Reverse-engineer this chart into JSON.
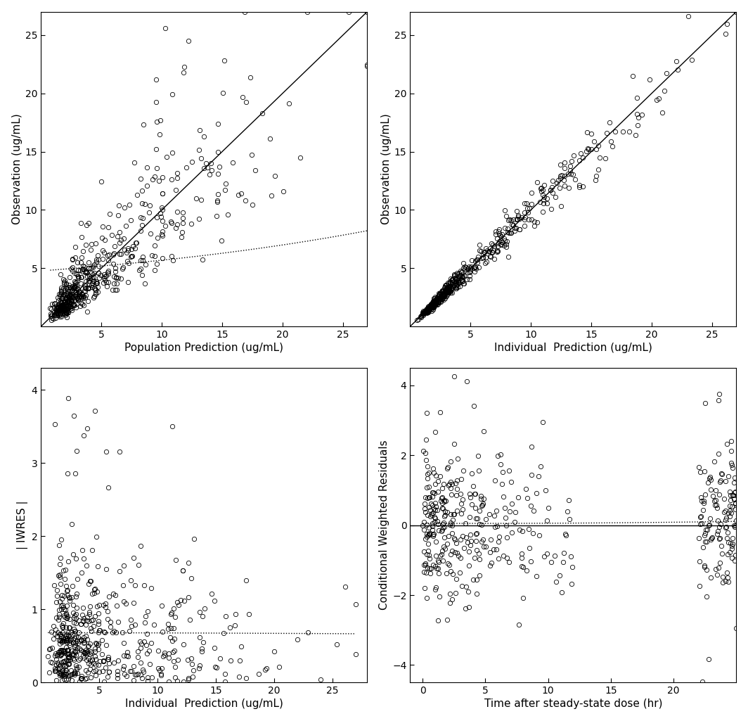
{
  "fig_width": 10.64,
  "fig_height": 10.25,
  "background_color": "white",
  "panel_bg": "white",
  "scatter_color": "black",
  "scatter_size": 4.5,
  "scatter_lw": 0.6,
  "identity_line_color": "black",
  "identity_line_lw": 1.0,
  "smooth_line_color": "black",
  "smooth_line_lw": 1.0,
  "hline_color": "black",
  "hline_lw": 1.0,
  "xlabel_top_left": "Population Prediction (ug/mL)",
  "ylabel_top_left": "Observation (ug/mL)",
  "xlabel_top_right": "Individual  Prediction (ug/mL)",
  "ylabel_top_right": "Observation (ug/mL)",
  "xlabel_bot_left": "Individual  Prediction (ug/mL)",
  "ylabel_bot_left": "| IWRES |",
  "xlabel_bot_right": "Time after steady-state dose (hr)",
  "ylabel_bot_right": "Conditional Weighted Residuals",
  "label_color": "black",
  "axis_label_fontsize": 11,
  "tick_fontsize": 10,
  "xlim_pk": [
    0,
    27
  ],
  "ylim_pk": [
    0,
    27
  ],
  "xticks_pk": [
    5,
    10,
    15,
    20,
    25
  ],
  "yticks_pk": [
    5,
    10,
    15,
    20,
    25
  ],
  "xlim_bl": [
    0,
    28
  ],
  "ylim_bl": [
    0,
    4.3
  ],
  "xticks_bl": [
    5,
    10,
    15,
    20,
    25
  ],
  "yticks_bl": [
    0,
    1,
    2,
    3,
    4
  ],
  "xlim_br": [
    -1,
    25
  ],
  "ylim_br": [
    -4.5,
    4.5
  ],
  "xticks_br": [
    0,
    5,
    10,
    15,
    20
  ],
  "yticks_br": [
    -4,
    -2,
    0,
    2,
    4
  ]
}
